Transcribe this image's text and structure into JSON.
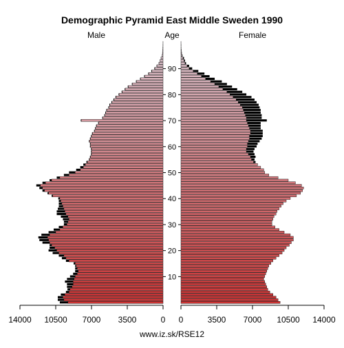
{
  "chart_data": {
    "type": "bar",
    "title": "Demographic Pyramid East Middle Sweden 1990",
    "left_label": "Male",
    "center_label": "Age",
    "right_label": "Female",
    "footer": "www.iz.sk/RSE12",
    "xlim": [
      0,
      14000
    ],
    "x_ticks_left": [
      "14000",
      "10500",
      "7000",
      "3500",
      "0"
    ],
    "x_ticks_left_values": [
      14000,
      10500,
      7000,
      3500,
      0
    ],
    "x_ticks_right": [
      "0",
      "3500",
      "7000",
      "10500",
      "14000"
    ],
    "x_ticks_right_values": [
      0,
      3500,
      7000,
      10500,
      14000
    ],
    "age_ticks": [
      "10",
      "20",
      "30",
      "40",
      "50",
      "60",
      "70",
      "80",
      "90"
    ],
    "age_tick_values": [
      10,
      20,
      30,
      40,
      50,
      60,
      70,
      80,
      90
    ],
    "ages": [
      0,
      1,
      2,
      3,
      4,
      5,
      6,
      7,
      8,
      9,
      10,
      11,
      12,
      13,
      14,
      15,
      16,
      17,
      18,
      19,
      20,
      21,
      22,
      23,
      24,
      25,
      26,
      27,
      28,
      29,
      30,
      31,
      32,
      33,
      34,
      35,
      36,
      37,
      38,
      39,
      40,
      41,
      42,
      43,
      44,
      45,
      46,
      47,
      48,
      49,
      50,
      51,
      52,
      53,
      54,
      55,
      56,
      57,
      58,
      59,
      60,
      61,
      62,
      63,
      64,
      65,
      66,
      67,
      68,
      69,
      70,
      71,
      72,
      73,
      74,
      75,
      76,
      77,
      78,
      79,
      80,
      81,
      82,
      83,
      84,
      85,
      86,
      87,
      88,
      89,
      90,
      91,
      92,
      93,
      94,
      95,
      96,
      97,
      98,
      99,
      100
    ],
    "series": [
      {
        "name": "Male",
        "color": "#cc3333",
        "values": [
          9300,
          9700,
          9800,
          9600,
          9200,
          9100,
          8900,
          8800,
          8800,
          8700,
          8600,
          8400,
          8300,
          8400,
          8500,
          8600,
          9200,
          9500,
          9700,
          10200,
          10400,
          10600,
          10900,
          11100,
          11200,
          11300,
          11100,
          10500,
          10100,
          9800,
          9400,
          9300,
          9200,
          9300,
          9500,
          9600,
          9700,
          9800,
          9900,
          10000,
          10100,
          10800,
          11200,
          11600,
          11800,
          12000,
          11500,
          10900,
          10100,
          9200,
          8600,
          8100,
          7800,
          7600,
          7400,
          7200,
          7100,
          7000,
          7000,
          7000,
          7100,
          7100,
          7200,
          7100,
          7000,
          6900,
          6700,
          6600,
          6500,
          6300,
          8000,
          5900,
          5700,
          5600,
          5500,
          5300,
          5200,
          5000,
          4800,
          4600,
          4300,
          4000,
          3700,
          3400,
          3000,
          2600,
          2200,
          1800,
          1400,
          1100,
          800,
          600,
          400,
          300,
          200,
          100,
          60,
          40,
          20,
          10,
          5
        ],
        "excess_values": [
          800,
          600,
          500,
          400,
          300,
          250,
          500,
          600,
          800,
          700,
          500,
          400,
          300,
          200,
          100,
          150,
          300,
          400,
          500,
          600,
          800,
          500,
          200,
          700,
          900,
          900,
          800,
          700,
          600,
          400,
          300,
          400,
          600,
          700,
          900,
          800,
          600,
          400,
          300,
          200,
          150,
          100,
          100,
          200,
          300,
          400,
          300,
          200,
          300,
          500,
          600,
          400,
          300,
          200,
          100,
          50,
          50,
          50,
          50,
          50,
          50,
          50,
          50,
          50,
          50,
          50,
          50,
          50,
          50,
          50,
          50,
          50,
          50,
          50,
          50,
          50,
          50,
          50,
          50,
          50,
          50,
          50,
          50,
          50,
          50,
          50,
          50,
          50,
          50,
          50,
          50,
          30,
          20,
          10,
          10,
          0,
          0,
          0,
          0,
          0,
          0
        ]
      },
      {
        "name": "Female",
        "color": "#cc3333",
        "values": [
          9700,
          9500,
          9300,
          9000,
          8700,
          8500,
          8400,
          8300,
          8200,
          8100,
          8200,
          8300,
          8400,
          8500,
          8600,
          8800,
          9000,
          9300,
          9600,
          9900,
          10100,
          10300,
          10600,
          10800,
          11000,
          11000,
          10700,
          10100,
          9600,
          9200,
          8900,
          8900,
          9000,
          9100,
          9300,
          9400,
          9600,
          9800,
          10000,
          10300,
          10700,
          11300,
          11700,
          11900,
          12000,
          11800,
          11200,
          10500,
          9500,
          8600,
          8200,
          8100,
          7800,
          7500,
          7100,
          6900,
          6800,
          6600,
          6400,
          6400,
          6500,
          6500,
          6600,
          6700,
          6700,
          6800,
          6800,
          6700,
          6600,
          6500,
          6400,
          6400,
          6300,
          6200,
          6100,
          6000,
          5800,
          5600,
          5400,
          5100,
          4800,
          4500,
          4100,
          3700,
          3300,
          2900,
          2400,
          2000,
          1600,
          1200,
          800,
          600,
          400,
          300,
          200,
          100,
          60,
          40,
          20,
          10,
          5
        ],
        "excess_values": [
          0,
          0,
          0,
          0,
          0,
          0,
          0,
          0,
          0,
          0,
          0,
          0,
          0,
          0,
          0,
          0,
          0,
          0,
          0,
          0,
          0,
          0,
          0,
          0,
          0,
          0,
          0,
          0,
          0,
          0,
          0,
          0,
          0,
          0,
          0,
          0,
          0,
          0,
          0,
          0,
          0,
          0,
          0,
          0,
          0,
          0,
          0,
          0,
          0,
          0,
          0,
          0,
          0,
          0,
          200,
          300,
          500,
          600,
          700,
          800,
          900,
          1000,
          1100,
          1200,
          1300,
          1200,
          1200,
          1100,
          1200,
          1300,
          2000,
          1500,
          1600,
          1600,
          1700,
          1700,
          1800,
          1800,
          1800,
          1800,
          1600,
          1500,
          1400,
          1300,
          1200,
          1100,
          900,
          800,
          700,
          500,
          300,
          200,
          100,
          100,
          100,
          50,
          20,
          10,
          5,
          5,
          0
        ]
      }
    ]
  }
}
